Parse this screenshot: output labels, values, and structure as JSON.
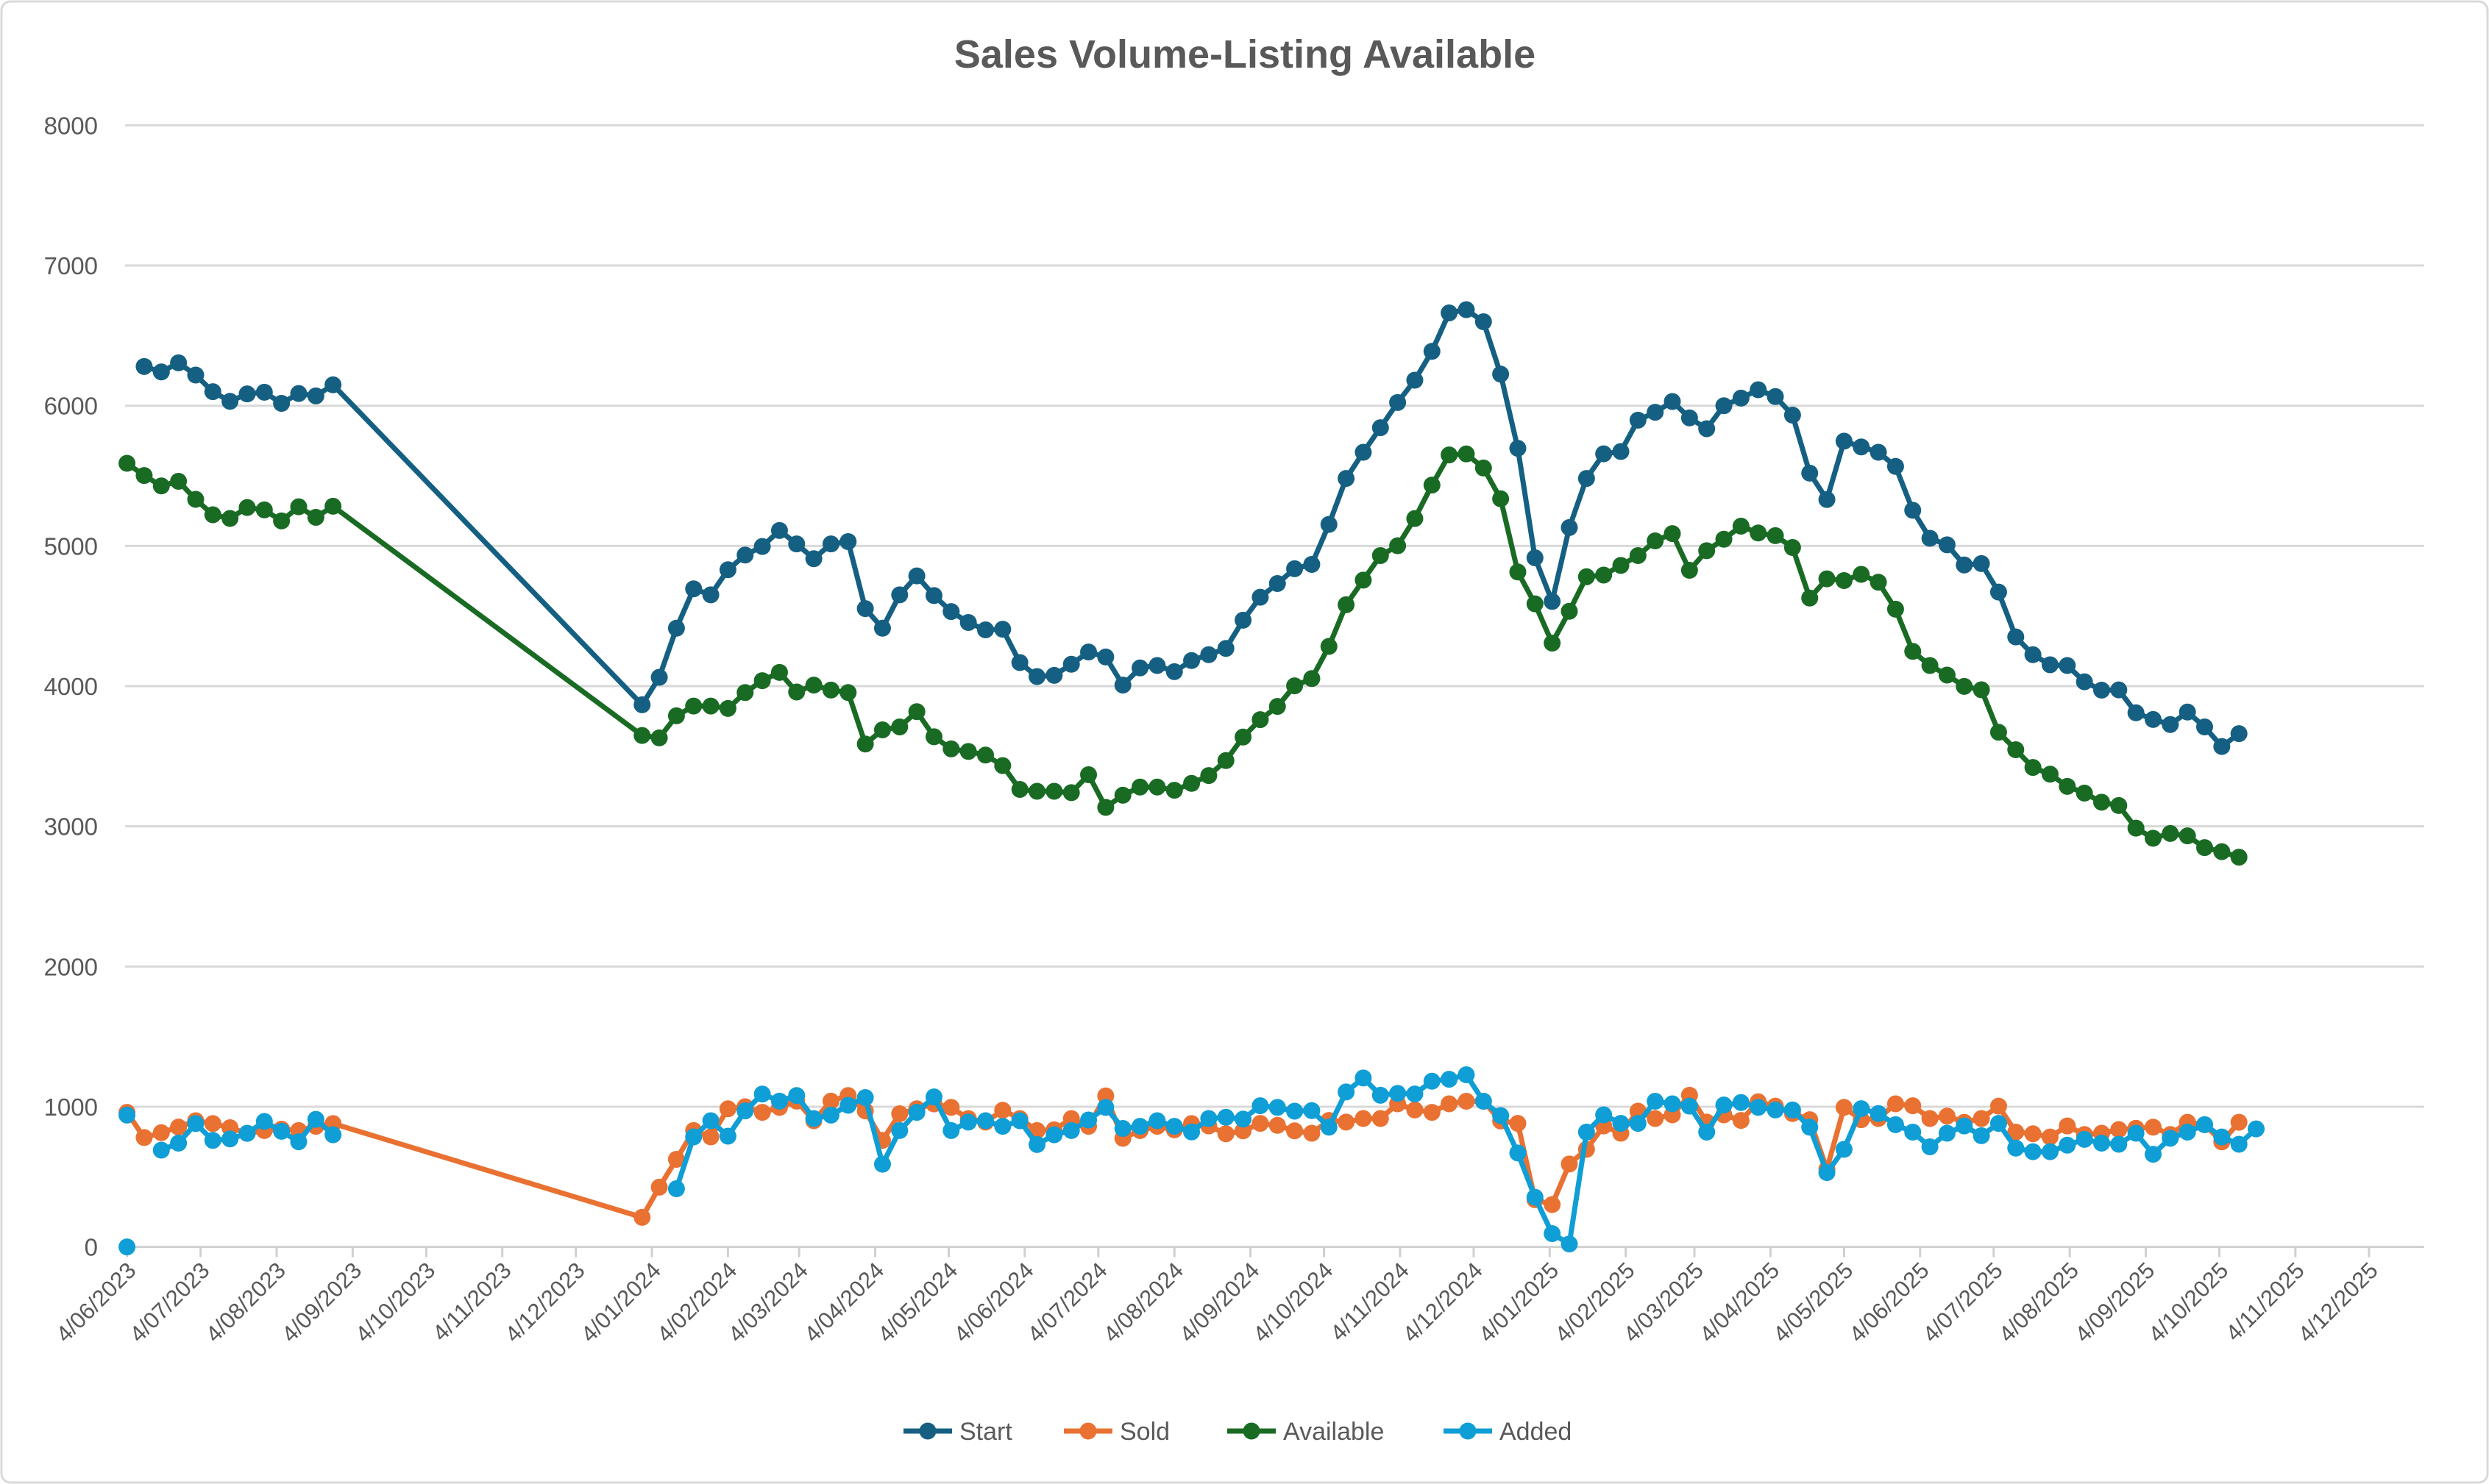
{
  "chart_data": {
    "type": "line",
    "title": "Sales Volume-Listing Available",
    "xlabel": "",
    "ylabel": "",
    "ylim": [
      0,
      8000
    ],
    "y_ticks": [
      0,
      1000,
      2000,
      3000,
      4000,
      5000,
      6000,
      7000,
      8000
    ],
    "y_tick_labels": [
      "0",
      "1000",
      "2000",
      "3000",
      "4000",
      "5000",
      "6000",
      "7000",
      "8000"
    ],
    "x_axis": "date",
    "xlim": [
      "2023-06-04",
      "2025-12-27"
    ],
    "x_tick_labels": [
      "4/06/2023",
      "4/07/2023",
      "4/08/2023",
      "4/09/2023",
      "4/10/2023",
      "4/11/2023",
      "4/12/2023",
      "4/01/2024",
      "4/02/2024",
      "4/03/2024",
      "4/04/2024",
      "4/05/2024",
      "4/06/2024",
      "4/07/2024",
      "4/08/2024",
      "4/09/2024",
      "4/10/2024",
      "4/11/2024",
      "4/12/2024",
      "4/01/2025",
      "4/02/2025",
      "4/03/2025",
      "4/04/2025",
      "4/05/2025",
      "4/06/2025",
      "4/07/2025",
      "4/08/2025",
      "4/09/2025",
      "4/10/2025",
      "4/11/2025",
      "4/12/2025"
    ],
    "x_tick_dates": [
      "2023-06-04",
      "2023-07-04",
      "2023-08-04",
      "2023-09-04",
      "2023-10-04",
      "2023-11-04",
      "2023-12-04",
      "2024-01-04",
      "2024-02-04",
      "2024-03-04",
      "2024-04-04",
      "2024-05-04",
      "2024-06-04",
      "2024-07-04",
      "2024-08-04",
      "2024-09-04",
      "2024-10-04",
      "2024-11-04",
      "2024-12-04",
      "2025-01-04",
      "2025-02-04",
      "2025-03-04",
      "2025-04-04",
      "2025-05-04",
      "2025-06-04",
      "2025-07-04",
      "2025-08-04",
      "2025-09-04",
      "2025-10-04",
      "2025-11-04",
      "2025-12-04"
    ],
    "grid": "horizontal",
    "legend_position": "bottom",
    "x": [
      "2023-06-04",
      "2023-06-11",
      "2023-06-18",
      "2023-06-25",
      "2023-07-02",
      "2023-07-09",
      "2023-07-16",
      "2023-07-23",
      "2023-07-30",
      "2023-08-06",
      "2023-08-13",
      "2023-08-20",
      "2023-08-27",
      "2023-12-31",
      "2024-01-07",
      "2024-01-14",
      "2024-01-21",
      "2024-01-28",
      "2024-02-04",
      "2024-02-11",
      "2024-02-18",
      "2024-02-25",
      "2024-03-03",
      "2024-03-10",
      "2024-03-17",
      "2024-03-24",
      "2024-03-31",
      "2024-04-07",
      "2024-04-14",
      "2024-04-21",
      "2024-04-28",
      "2024-05-05",
      "2024-05-12",
      "2024-05-19",
      "2024-05-26",
      "2024-06-02",
      "2024-06-09",
      "2024-06-16",
      "2024-06-23",
      "2024-06-30",
      "2024-07-07",
      "2024-07-14",
      "2024-07-21",
      "2024-07-28",
      "2024-08-04",
      "2024-08-11",
      "2024-08-18",
      "2024-08-25",
      "2024-09-01",
      "2024-09-08",
      "2024-09-15",
      "2024-09-22",
      "2024-09-29",
      "2024-10-06",
      "2024-10-13",
      "2024-10-20",
      "2024-10-27",
      "2024-11-03",
      "2024-11-10",
      "2024-11-17",
      "2024-11-24",
      "2024-12-01",
      "2024-12-08",
      "2024-12-15",
      "2024-12-22",
      "2024-12-29",
      "2025-01-05",
      "2025-01-12",
      "2025-01-19",
      "2025-01-26",
      "2025-02-02",
      "2025-02-09",
      "2025-02-16",
      "2025-02-23",
      "2025-03-02",
      "2025-03-09",
      "2025-03-16",
      "2025-03-23",
      "2025-03-30",
      "2025-04-06",
      "2025-04-13",
      "2025-04-20",
      "2025-04-27",
      "2025-05-04",
      "2025-05-11",
      "2025-05-18",
      "2025-05-25",
      "2025-06-01",
      "2025-06-08",
      "2025-06-15",
      "2025-06-22",
      "2025-06-29",
      "2025-07-06",
      "2025-07-13",
      "2025-07-20",
      "2025-07-27",
      "2025-08-03",
      "2025-08-10",
      "2025-08-17",
      "2025-08-24",
      "2025-08-31",
      "2025-09-07",
      "2025-09-14",
      "2025-09-21",
      "2025-09-28",
      "2025-10-05",
      "2025-10-12",
      "2025-10-19"
    ],
    "series": [
      {
        "name": "Start",
        "color": "#156082",
        "values": [
          null,
          6280,
          6241,
          6306,
          6219,
          6100,
          6031,
          6084,
          6096,
          6017,
          6087,
          6070,
          6149,
          3867,
          4063,
          4413,
          4694,
          4651,
          4830,
          4935,
          4996,
          5110,
          5014,
          4909,
          5014,
          5031,
          4553,
          4413,
          4651,
          4786,
          4646,
          4532,
          4454,
          4401,
          4406,
          4168,
          4068,
          4077,
          4156,
          4243,
          4208,
          4007,
          4130,
          4147,
          4103,
          4182,
          4224,
          4269,
          4470,
          4634,
          4732,
          4837,
          4868,
          5153,
          5481,
          5668,
          5843,
          6023,
          6182,
          6388,
          6662,
          6685,
          6599,
          6225,
          5696,
          4915,
          4604,
          5131,
          5481,
          5657,
          5673,
          5897,
          5953,
          6030,
          5913,
          5836,
          6000,
          6054,
          6114,
          6065,
          5933,
          5519,
          5331,
          5747,
          5706,
          5668,
          5567,
          5254,
          5054,
          5008,
          4864,
          4874,
          4671,
          4351,
          4224,
          4152,
          4147,
          4031,
          3971,
          3973,
          3810,
          3762,
          3726,
          3815,
          3709,
          3569,
          3661,
          null
        ]
      },
      {
        "name": "Sold",
        "color": "#E97132",
        "values": [
          960,
          780,
          815,
          855,
          900,
          880,
          850,
          810,
          830,
          840,
          830,
          860,
          880,
          211,
          426,
          625,
          830,
          785,
          985,
          1000,
          960,
          995,
          1040,
          900,
          1040,
          1080,
          970,
          760,
          950,
          985,
          1020,
          995,
          915,
          890,
          975,
          915,
          830,
          835,
          915,
          860,
          1077,
          775,
          830,
          860,
          835,
          880,
          863,
          807,
          828,
          881,
          867,
          828,
          811,
          902,
          890,
          916,
          916,
          1021,
          977,
          960,
          1021,
          1039,
          1039,
          898,
          881,
          337,
          302,
          591,
          696,
          863,
          811,
          968,
          916,
          942,
          1082,
          890,
          942,
          902,
          1035,
          1004,
          951,
          907,
          556,
          995,
          907,
          916,
          1021,
          1007,
          916,
          933,
          889,
          916,
          1004,
          819,
          807,
          784,
          863,
          802,
          811,
          837,
          846,
          854,
          802,
          889,
          872,
          749,
          889,
          null
        ]
      },
      {
        "name": "Available",
        "color": "#196B24",
        "values": [
          5589,
          5502,
          5428,
          5461,
          5332,
          5222,
          5196,
          5274,
          5257,
          5178,
          5279,
          5204,
          5283,
          3648,
          3631,
          3788,
          3858,
          3858,
          3841,
          3954,
          4039,
          4098,
          3958,
          4007,
          3972,
          3954,
          3587,
          3688,
          3709,
          3818,
          3639,
          3552,
          3534,
          3508,
          3433,
          3263,
          3250,
          3250,
          3240,
          3368,
          3135,
          3222,
          3280,
          3280,
          3257,
          3306,
          3362,
          3469,
          3637,
          3761,
          3855,
          4002,
          4054,
          4283,
          4580,
          4756,
          4931,
          5001,
          5195,
          5434,
          5649,
          5656,
          5556,
          5336,
          4814,
          4587,
          4307,
          4534,
          4780,
          4792,
          4861,
          4931,
          5036,
          5088,
          4826,
          4966,
          5048,
          5141,
          5092,
          5073,
          4989,
          4628,
          4765,
          4753,
          4797,
          4741,
          4549,
          4248,
          4147,
          4079,
          3998,
          3974,
          3671,
          3546,
          3420,
          3372,
          3285,
          3237,
          3172,
          3148,
          2987,
          2915,
          2949,
          2932,
          2848,
          2819,
          2780,
          null
        ]
      },
      {
        "name": "Added",
        "color": "#0F9ED5",
        "values": [
          940,
          null,
          690,
          740,
          880,
          760,
          770,
          810,
          895,
          825,
          750,
          910,
          800,
          null,
          null,
          415,
          785,
          900,
          790,
          970,
          1090,
          1040,
          1080,
          915,
          940,
          1010,
          1065,
          590,
          830,
          960,
          1070,
          830,
          890,
          900,
          860,
          900,
          730,
          800,
          830,
          905,
          995,
          845,
          860,
          900,
          860,
          820,
          916,
          925,
          912,
          1007,
          995,
          968,
          972,
          854,
          1105,
          1205,
          1082,
          1095,
          1091,
          1182,
          1196,
          1228,
          1039,
          937,
          670,
          354,
          95,
          21,
          819,
          942,
          881,
          881,
          1039,
          1021,
          1004,
          819,
          1012,
          1030,
          995,
          977,
          977,
          854,
          530,
          696,
          986,
          951,
          872,
          819,
          714,
          811,
          863,
          793,
          881,
          705,
          679,
          679,
          726,
          767,
          740,
          732,
          811,
          661,
          775,
          819,
          872,
          784,
          732,
          842
        ],
        "extra_points": [
          {
            "date": "2023-06-04",
            "value": 0
          }
        ]
      }
    ]
  }
}
